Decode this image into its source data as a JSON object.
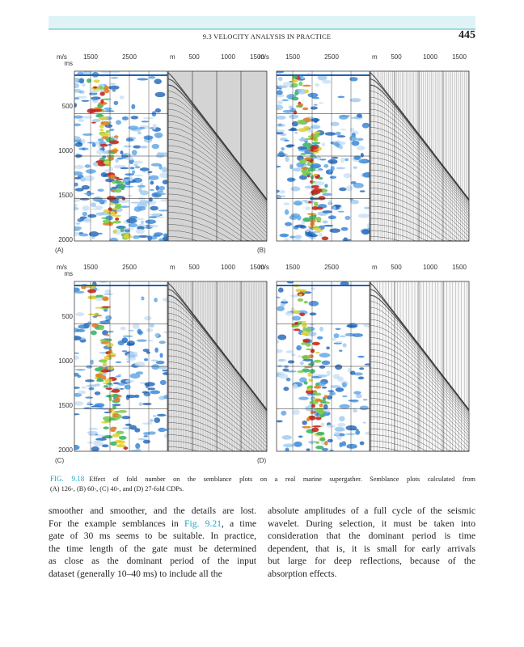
{
  "header": {
    "section": "9.3 VELOCITY ANALYSIS IN PRACTICE",
    "page_number": "445"
  },
  "figure": {
    "panels": [
      {
        "label": "(A)",
        "top_labels": [
          "m/s",
          "1500",
          "2500",
          "m",
          "500",
          "1000",
          "1500"
        ],
        "left_labels": [
          "ms",
          "500",
          "1000",
          "1500",
          "2000"
        ]
      },
      {
        "label": "(B)",
        "top_labels": [
          "m/s",
          "1500",
          "2500",
          "m",
          "500",
          "1000",
          "1500"
        ]
      },
      {
        "label": "(C)",
        "top_labels": [
          "m/s",
          "1500",
          "2500",
          "m",
          "500",
          "1000",
          "1500"
        ],
        "left_labels": [
          "ms",
          "500",
          "1000",
          "1500",
          "2000"
        ]
      },
      {
        "label": "(D)",
        "top_labels": [
          "m/s",
          "1500",
          "2500",
          "m",
          "500",
          "1000",
          "1500"
        ]
      }
    ],
    "caption": {
      "number": "FIG. 9.18",
      "lines": [
        "Effect of fold number on the semblance plots on a real marine supergather. Semblance plots calculated from",
        "(A) 126-, (B) 60-, (C) 40-, and (D) 27-fold CDPs."
      ]
    }
  },
  "body": {
    "columns": [
      {
        "lines": [
          [
            "smoother and smoother, and the details are lost."
          ],
          [
            "For the example semblances in ",
            "Fig. 9.21",
            ", a time"
          ],
          [
            "gate of 30 ms seems to be suitable. In practice,"
          ],
          [
            "the time length of the gate must be determined"
          ],
          [
            "as close as the dominant period of the input"
          ],
          [
            "dataset (generally 10–40 ms) to include all the"
          ]
        ]
      },
      {
        "lines": [
          [
            "absolute amplitudes of a full cycle of the seismic"
          ],
          [
            "wavelet. During selection, it must be taken into"
          ],
          [
            "consideration that the dominant period is time"
          ],
          [
            "dependent, that is, it is small for early arrivals"
          ],
          [
            "but large for deep reflections, because of the"
          ],
          [
            "absorption effects."
          ]
        ]
      }
    ]
  }
}
